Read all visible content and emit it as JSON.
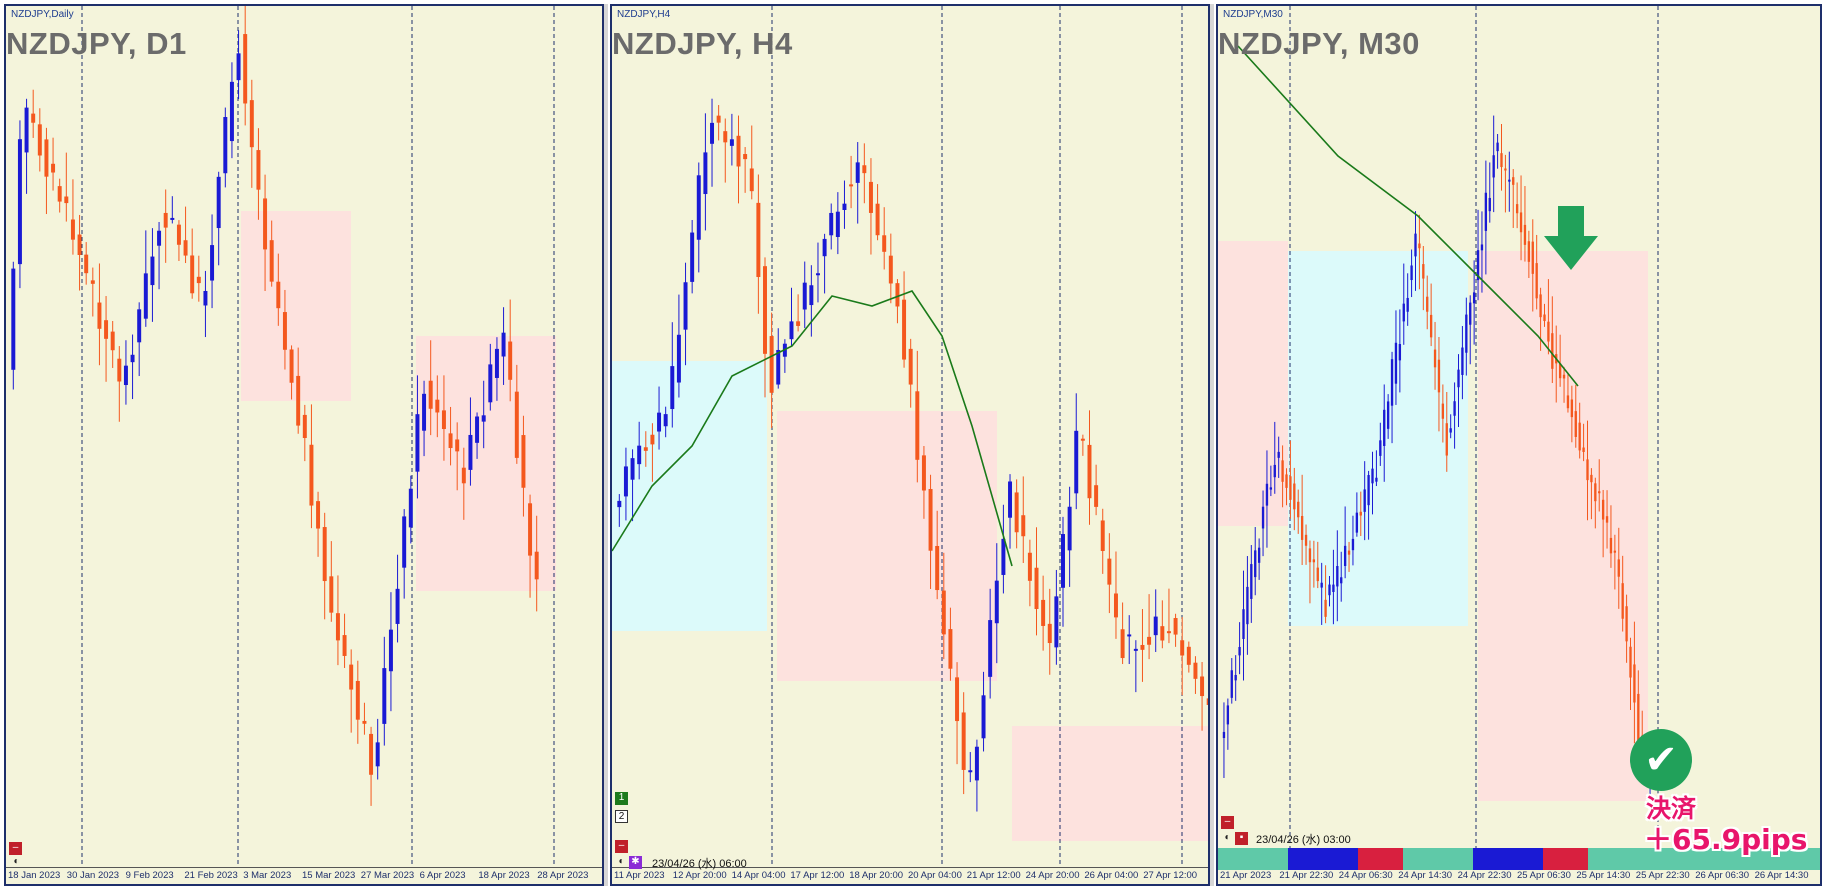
{
  "colors": {
    "bg": "#f4f4db",
    "bull": "#1a1ad4",
    "bear": "#f4581e",
    "ma": "#1a7a1a",
    "zone_buy": "#dcfafa",
    "zone_sell": "#fde2de",
    "grid": "#1e2f6b",
    "accent": "#e8156b"
  },
  "panels": [
    {
      "id": "d1",
      "small": "NZDJPY,Daily",
      "title": "NZDJPY, D1",
      "dates": [
        "18 Jan 2023",
        "30 Jan 2023",
        "9 Feb 2023",
        "21 Feb 2023",
        "3 Mar 2023",
        "15 Mar 2023",
        "27 Mar 2023",
        "6 Apr 2023",
        "18 Apr 2023",
        "28 Apr 2023"
      ]
    },
    {
      "id": "h4",
      "small": "NZDJPY,H4",
      "title": "NZDJPY, H4",
      "timestamp": "23/04/26 (水) 06:00",
      "btn1": "1",
      "btn2": "2",
      "dates": [
        "11 Apr 2023",
        "12 Apr 20:00",
        "14 Apr 04:00",
        "17 Apr 12:00",
        "18 Apr 20:00",
        "20 Apr 04:00",
        "21 Apr 12:00",
        "24 Apr 20:00",
        "26 Apr 04:00",
        "27 Apr 12:00"
      ]
    },
    {
      "id": "m30",
      "small": "NZDJPY,M30",
      "title": "NZDJPY, M30",
      "timestamp": "23/04/26 (水) 03:00",
      "dates": [
        "21 Apr 2023",
        "21 Apr 22:30",
        "24 Apr 06:30",
        "24 Apr 14:30",
        "24 Apr 22:30",
        "25 Apr 06:30",
        "25 Apr 14:30",
        "25 Apr 22:30",
        "26 Apr 06:30",
        "26 Apr 14:30"
      ]
    }
  ],
  "result": {
    "label": "決済",
    "pips": "＋65.9pips"
  },
  "chart_data": [
    {
      "type": "candlestick",
      "title": "NZDJPY, D1",
      "timeframe": "Daily",
      "x_range": [
        "18 Jan 2023",
        "28 Apr 2023"
      ],
      "shape": "rally to Feb peak, decline into late March low, recovery in April"
    },
    {
      "type": "candlestick",
      "title": "NZDJPY, H4",
      "timeframe": "H4",
      "x_range": [
        "11 Apr 2023",
        "27 Apr 12:00"
      ],
      "overlay": "moving average",
      "shape": "rise to 18 Apr high, sharp drop 20-21 Apr, bounce, final sell-off 26 Apr"
    },
    {
      "type": "candlestick",
      "title": "NZDJPY, M30",
      "timeframe": "M30",
      "x_range": [
        "21 Apr 2023",
        "26 Apr 14:30"
      ],
      "overlay": "moving average",
      "annotations": [
        "sell entry arrow near 25 Apr 06:30",
        "exit check mark 26 Apr"
      ],
      "result": "決済 ＋65.9pips"
    }
  ]
}
